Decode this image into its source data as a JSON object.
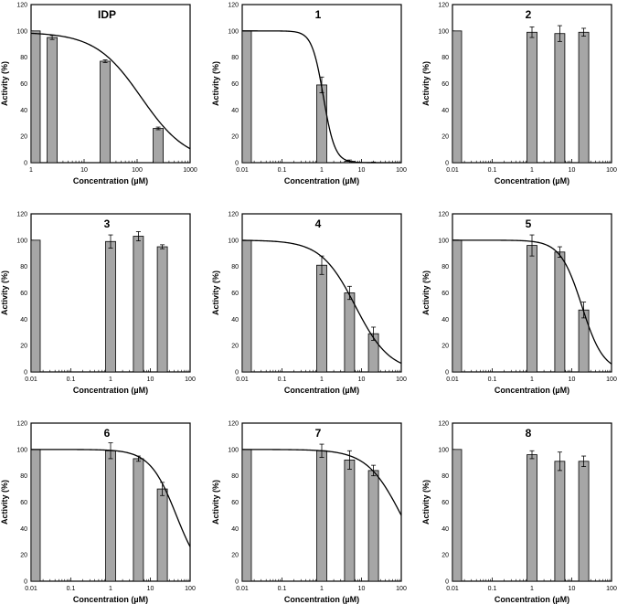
{
  "figure": {
    "panel_count": 9
  },
  "chart_data": [
    {
      "type": "bar",
      "title": "IDP",
      "xlabel": "Concentration (µM)",
      "ylabel": "Activity (%)",
      "xscale": "log",
      "xlim": [
        1,
        1000
      ],
      "ylim": [
        0,
        120
      ],
      "x_ticks": [
        1,
        10,
        100,
        1000
      ],
      "x_tick_labels": [
        "1",
        "10",
        "100",
        "1000"
      ],
      "y_ticks": [
        0,
        20,
        40,
        60,
        80,
        100,
        120
      ],
      "y_tick_labels": [
        "0",
        "20",
        "40",
        "60",
        "80",
        "100",
        "120"
      ],
      "bars": [
        {
          "x": 1,
          "value": 100,
          "error": 0
        },
        {
          "x": 2.5,
          "value": 95,
          "error": 1.5
        },
        {
          "x": 25,
          "value": 77,
          "error": 1
        },
        {
          "x": 250,
          "value": 26,
          "error": 1
        }
      ],
      "fit": {
        "top": 99,
        "ic50": 120,
        "hill": 1
      }
    },
    {
      "type": "bar",
      "title": "1",
      "xlabel": "Concentration (µM)",
      "ylabel": "Activity (%)",
      "xscale": "log",
      "xlim": [
        0.01,
        100
      ],
      "ylim": [
        0,
        120
      ],
      "x_ticks": [
        0.01,
        0.1,
        1,
        10,
        100
      ],
      "x_tick_labels": [
        "0.01",
        "0.1",
        "1",
        "10",
        "100"
      ],
      "y_ticks": [
        0,
        20,
        40,
        60,
        80,
        100,
        120
      ],
      "y_tick_labels": [
        "0",
        "20",
        "40",
        "60",
        "80",
        "100",
        "120"
      ],
      "bars": [
        {
          "x": 0.01,
          "value": 100,
          "error": 0
        },
        {
          "x": 1,
          "value": 59,
          "error": 6
        },
        {
          "x": 5,
          "value": 1,
          "error": 1
        },
        {
          "x": 20,
          "value": 0,
          "error": 0.5
        }
      ],
      "fit": {
        "top": 100,
        "ic50": 1.1,
        "hill": 3
      }
    },
    {
      "type": "bar",
      "title": "2",
      "xlabel": "Concentration (µM)",
      "ylabel": "Activity (%)",
      "xscale": "log",
      "xlim": [
        0.01,
        100
      ],
      "ylim": [
        0,
        120
      ],
      "x_ticks": [
        0.01,
        0.1,
        1,
        10,
        100
      ],
      "x_tick_labels": [
        "0.01",
        "0.1",
        "1",
        "10",
        "100"
      ],
      "y_ticks": [
        0,
        20,
        40,
        60,
        80,
        100,
        120
      ],
      "y_tick_labels": [
        "0",
        "20",
        "40",
        "60",
        "80",
        "100",
        "120"
      ],
      "bars": [
        {
          "x": 0.01,
          "value": 100,
          "error": 0
        },
        {
          "x": 1,
          "value": 99,
          "error": 4
        },
        {
          "x": 5,
          "value": 98,
          "error": 6
        },
        {
          "x": 20,
          "value": 99,
          "error": 3
        }
      ]
    },
    {
      "type": "bar",
      "title": "3",
      "xlabel": "Concentration (µM)",
      "ylabel": "Activity (%)",
      "xscale": "log",
      "xlim": [
        0.01,
        100
      ],
      "ylim": [
        0,
        120
      ],
      "x_ticks": [
        0.01,
        0.1,
        1,
        10,
        100
      ],
      "x_tick_labels": [
        "0.01",
        "0.1",
        "1",
        "10",
        "100"
      ],
      "y_ticks": [
        0,
        20,
        40,
        60,
        80,
        100,
        120
      ],
      "y_tick_labels": [
        "0",
        "20",
        "40",
        "60",
        "80",
        "100",
        "120"
      ],
      "bars": [
        {
          "x": 0.01,
          "value": 100,
          "error": 0
        },
        {
          "x": 1,
          "value": 99,
          "error": 5
        },
        {
          "x": 5,
          "value": 103,
          "error": 3.5
        },
        {
          "x": 20,
          "value": 95,
          "error": 1.5
        }
      ]
    },
    {
      "type": "bar",
      "title": "4",
      "xlabel": "Concentration (µM)",
      "ylabel": "Activity (%)",
      "xscale": "log",
      "xlim": [
        0.01,
        100
      ],
      "ylim": [
        0,
        120
      ],
      "x_ticks": [
        0.01,
        0.1,
        1,
        10,
        100
      ],
      "x_tick_labels": [
        "0.01",
        "0.1",
        "1",
        "10",
        "100"
      ],
      "y_ticks": [
        0,
        20,
        40,
        60,
        80,
        100,
        120
      ],
      "y_tick_labels": [
        "0",
        "20",
        "40",
        "60",
        "80",
        "100",
        "120"
      ],
      "bars": [
        {
          "x": 0.01,
          "value": 100,
          "error": 0
        },
        {
          "x": 1,
          "value": 81,
          "error": 7
        },
        {
          "x": 5,
          "value": 60,
          "error": 5
        },
        {
          "x": 20,
          "value": 29,
          "error": 5
        }
      ],
      "fit": {
        "top": 100,
        "ic50": 7,
        "hill": 1
      }
    },
    {
      "type": "bar",
      "title": "5",
      "xlabel": "Concentration (µM)",
      "ylabel": "Activity (%)",
      "xscale": "log",
      "xlim": [
        0.01,
        100
      ],
      "ylim": [
        0,
        120
      ],
      "x_ticks": [
        0.01,
        0.1,
        1,
        10,
        100
      ],
      "x_tick_labels": [
        "0.01",
        "0.1",
        "1",
        "10",
        "100"
      ],
      "y_ticks": [
        0,
        20,
        40,
        60,
        80,
        100,
        120
      ],
      "y_tick_labels": [
        "0",
        "20",
        "40",
        "60",
        "80",
        "100",
        "120"
      ],
      "bars": [
        {
          "x": 0.01,
          "value": 100,
          "error": 0
        },
        {
          "x": 1,
          "value": 96,
          "error": 8
        },
        {
          "x": 5,
          "value": 91,
          "error": 4
        },
        {
          "x": 20,
          "value": 47,
          "error": 6
        }
      ],
      "fit": {
        "top": 100,
        "ic50": 18,
        "hill": 1.6
      }
    },
    {
      "type": "bar",
      "title": "6",
      "xlabel": "Concentration (µM)",
      "ylabel": "Activity (%)",
      "xscale": "log",
      "xlim": [
        0.01,
        100
      ],
      "ylim": [
        0,
        120
      ],
      "x_ticks": [
        0.01,
        0.1,
        1,
        10,
        100
      ],
      "x_tick_labels": [
        "0.01",
        "0.1",
        "1",
        "10",
        "100"
      ],
      "y_ticks": [
        0,
        20,
        40,
        60,
        80,
        100,
        120
      ],
      "y_tick_labels": [
        "0",
        "20",
        "40",
        "60",
        "80",
        "100",
        "120"
      ],
      "bars": [
        {
          "x": 0.01,
          "value": 100,
          "error": 0
        },
        {
          "x": 1,
          "value": 99,
          "error": 6
        },
        {
          "x": 5,
          "value": 93,
          "error": 2
        },
        {
          "x": 20,
          "value": 70,
          "error": 5
        }
      ],
      "fit": {
        "top": 100,
        "ic50": 45,
        "hill": 1.3
      }
    },
    {
      "type": "bar",
      "title": "7",
      "xlabel": "Concentration (µM)",
      "ylabel": "Activity (%)",
      "xscale": "log",
      "xlim": [
        0.01,
        100
      ],
      "ylim": [
        0,
        120
      ],
      "x_ticks": [
        0.01,
        0.1,
        1,
        10,
        100
      ],
      "x_tick_labels": [
        "0.01",
        "0.1",
        "1",
        "10",
        "100"
      ],
      "y_ticks": [
        0,
        20,
        40,
        60,
        80,
        100,
        120
      ],
      "y_tick_labels": [
        "0",
        "20",
        "40",
        "60",
        "80",
        "100",
        "120"
      ],
      "bars": [
        {
          "x": 0.01,
          "value": 100,
          "error": 0
        },
        {
          "x": 1,
          "value": 99,
          "error": 5
        },
        {
          "x": 5,
          "value": 92,
          "error": 7
        },
        {
          "x": 20,
          "value": 84,
          "error": 4
        }
      ],
      "fit": {
        "top": 100,
        "ic50": 100,
        "hill": 1
      }
    },
    {
      "type": "bar",
      "title": "8",
      "xlabel": "Concentration (µM)",
      "ylabel": "Activity (%)",
      "xscale": "log",
      "xlim": [
        0.01,
        100
      ],
      "ylim": [
        0,
        120
      ],
      "x_ticks": [
        0.01,
        0.1,
        1,
        10,
        100
      ],
      "x_tick_labels": [
        "0.01",
        "0.1",
        "1",
        "10",
        "100"
      ],
      "y_ticks": [
        0,
        20,
        40,
        60,
        80,
        100,
        120
      ],
      "y_tick_labels": [
        "0",
        "20",
        "40",
        "60",
        "80",
        "100",
        "120"
      ],
      "bars": [
        {
          "x": 0.01,
          "value": 100,
          "error": 0
        },
        {
          "x": 1,
          "value": 96,
          "error": 3
        },
        {
          "x": 5,
          "value": 91,
          "error": 7
        },
        {
          "x": 20,
          "value": 91,
          "error": 4
        }
      ]
    }
  ]
}
